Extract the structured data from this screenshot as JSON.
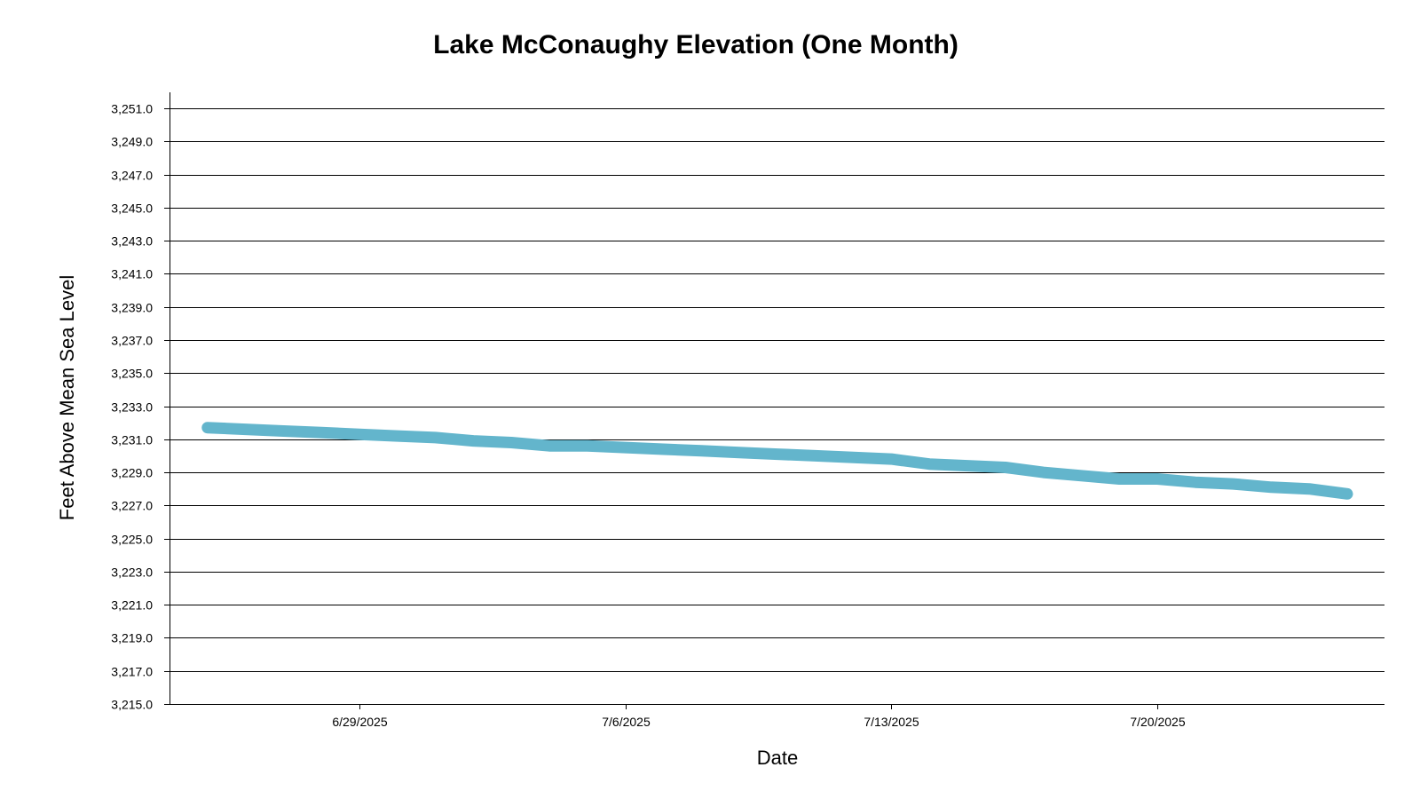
{
  "chart_data": {
    "type": "line",
    "title": "Lake McConaughy Elevation (One Month)",
    "xlabel": "Date",
    "ylabel": "Feet Above Mean Sea Level",
    "ylim": [
      3215.0,
      3252.0
    ],
    "xlim": [
      "2025-06-24",
      "2025-07-26"
    ],
    "grid": true,
    "legend": "none",
    "line_color": "#63b5cc",
    "x_ticks": [
      {
        "date": "2025-06-29",
        "label": "6/29/2025"
      },
      {
        "date": "2025-07-06",
        "label": "7/6/2025"
      },
      {
        "date": "2025-07-13",
        "label": "7/13/2025"
      },
      {
        "date": "2025-07-20",
        "label": "7/20/2025"
      }
    ],
    "y_ticks": [
      {
        "value": 3215.0,
        "label": "3,215.0"
      },
      {
        "value": 3217.0,
        "label": "3,217.0"
      },
      {
        "value": 3219.0,
        "label": "3,219.0"
      },
      {
        "value": 3221.0,
        "label": "3,221.0"
      },
      {
        "value": 3223.0,
        "label": "3,223.0"
      },
      {
        "value": 3225.0,
        "label": "3,225.0"
      },
      {
        "value": 3227.0,
        "label": "3,227.0"
      },
      {
        "value": 3229.0,
        "label": "3,229.0"
      },
      {
        "value": 3231.0,
        "label": "3,231.0"
      },
      {
        "value": 3233.0,
        "label": "3,233.0"
      },
      {
        "value": 3235.0,
        "label": "3,235.0"
      },
      {
        "value": 3237.0,
        "label": "3,237.0"
      },
      {
        "value": 3239.0,
        "label": "3,239.0"
      },
      {
        "value": 3241.0,
        "label": "3,241.0"
      },
      {
        "value": 3243.0,
        "label": "3,243.0"
      },
      {
        "value": 3245.0,
        "label": "3,245.0"
      },
      {
        "value": 3247.0,
        "label": "3,247.0"
      },
      {
        "value": 3249.0,
        "label": "3,249.0"
      },
      {
        "value": 3251.0,
        "label": "3,251.0"
      }
    ],
    "series": [
      {
        "x": [
          "2025-06-25",
          "2025-06-26",
          "2025-06-27",
          "2025-06-28",
          "2025-06-29",
          "2025-06-30",
          "2025-07-01",
          "2025-07-02",
          "2025-07-03",
          "2025-07-04",
          "2025-07-05",
          "2025-07-06",
          "2025-07-07",
          "2025-07-08",
          "2025-07-09",
          "2025-07-10",
          "2025-07-11",
          "2025-07-12",
          "2025-07-13",
          "2025-07-14",
          "2025-07-15",
          "2025-07-16",
          "2025-07-17",
          "2025-07-18",
          "2025-07-19",
          "2025-07-20",
          "2025-07-21",
          "2025-07-22",
          "2025-07-23",
          "2025-07-24",
          "2025-07-25"
        ],
        "y": [
          3231.7,
          3231.6,
          3231.5,
          3231.4,
          3231.3,
          3231.2,
          3231.1,
          3230.9,
          3230.8,
          3230.6,
          3230.6,
          3230.5,
          3230.4,
          3230.3,
          3230.2,
          3230.1,
          3230.0,
          3229.9,
          3229.8,
          3229.5,
          3229.4,
          3229.3,
          3229.0,
          3228.8,
          3228.6,
          3228.6,
          3228.4,
          3228.3,
          3228.1,
          3228.0,
          3227.7
        ]
      }
    ]
  }
}
